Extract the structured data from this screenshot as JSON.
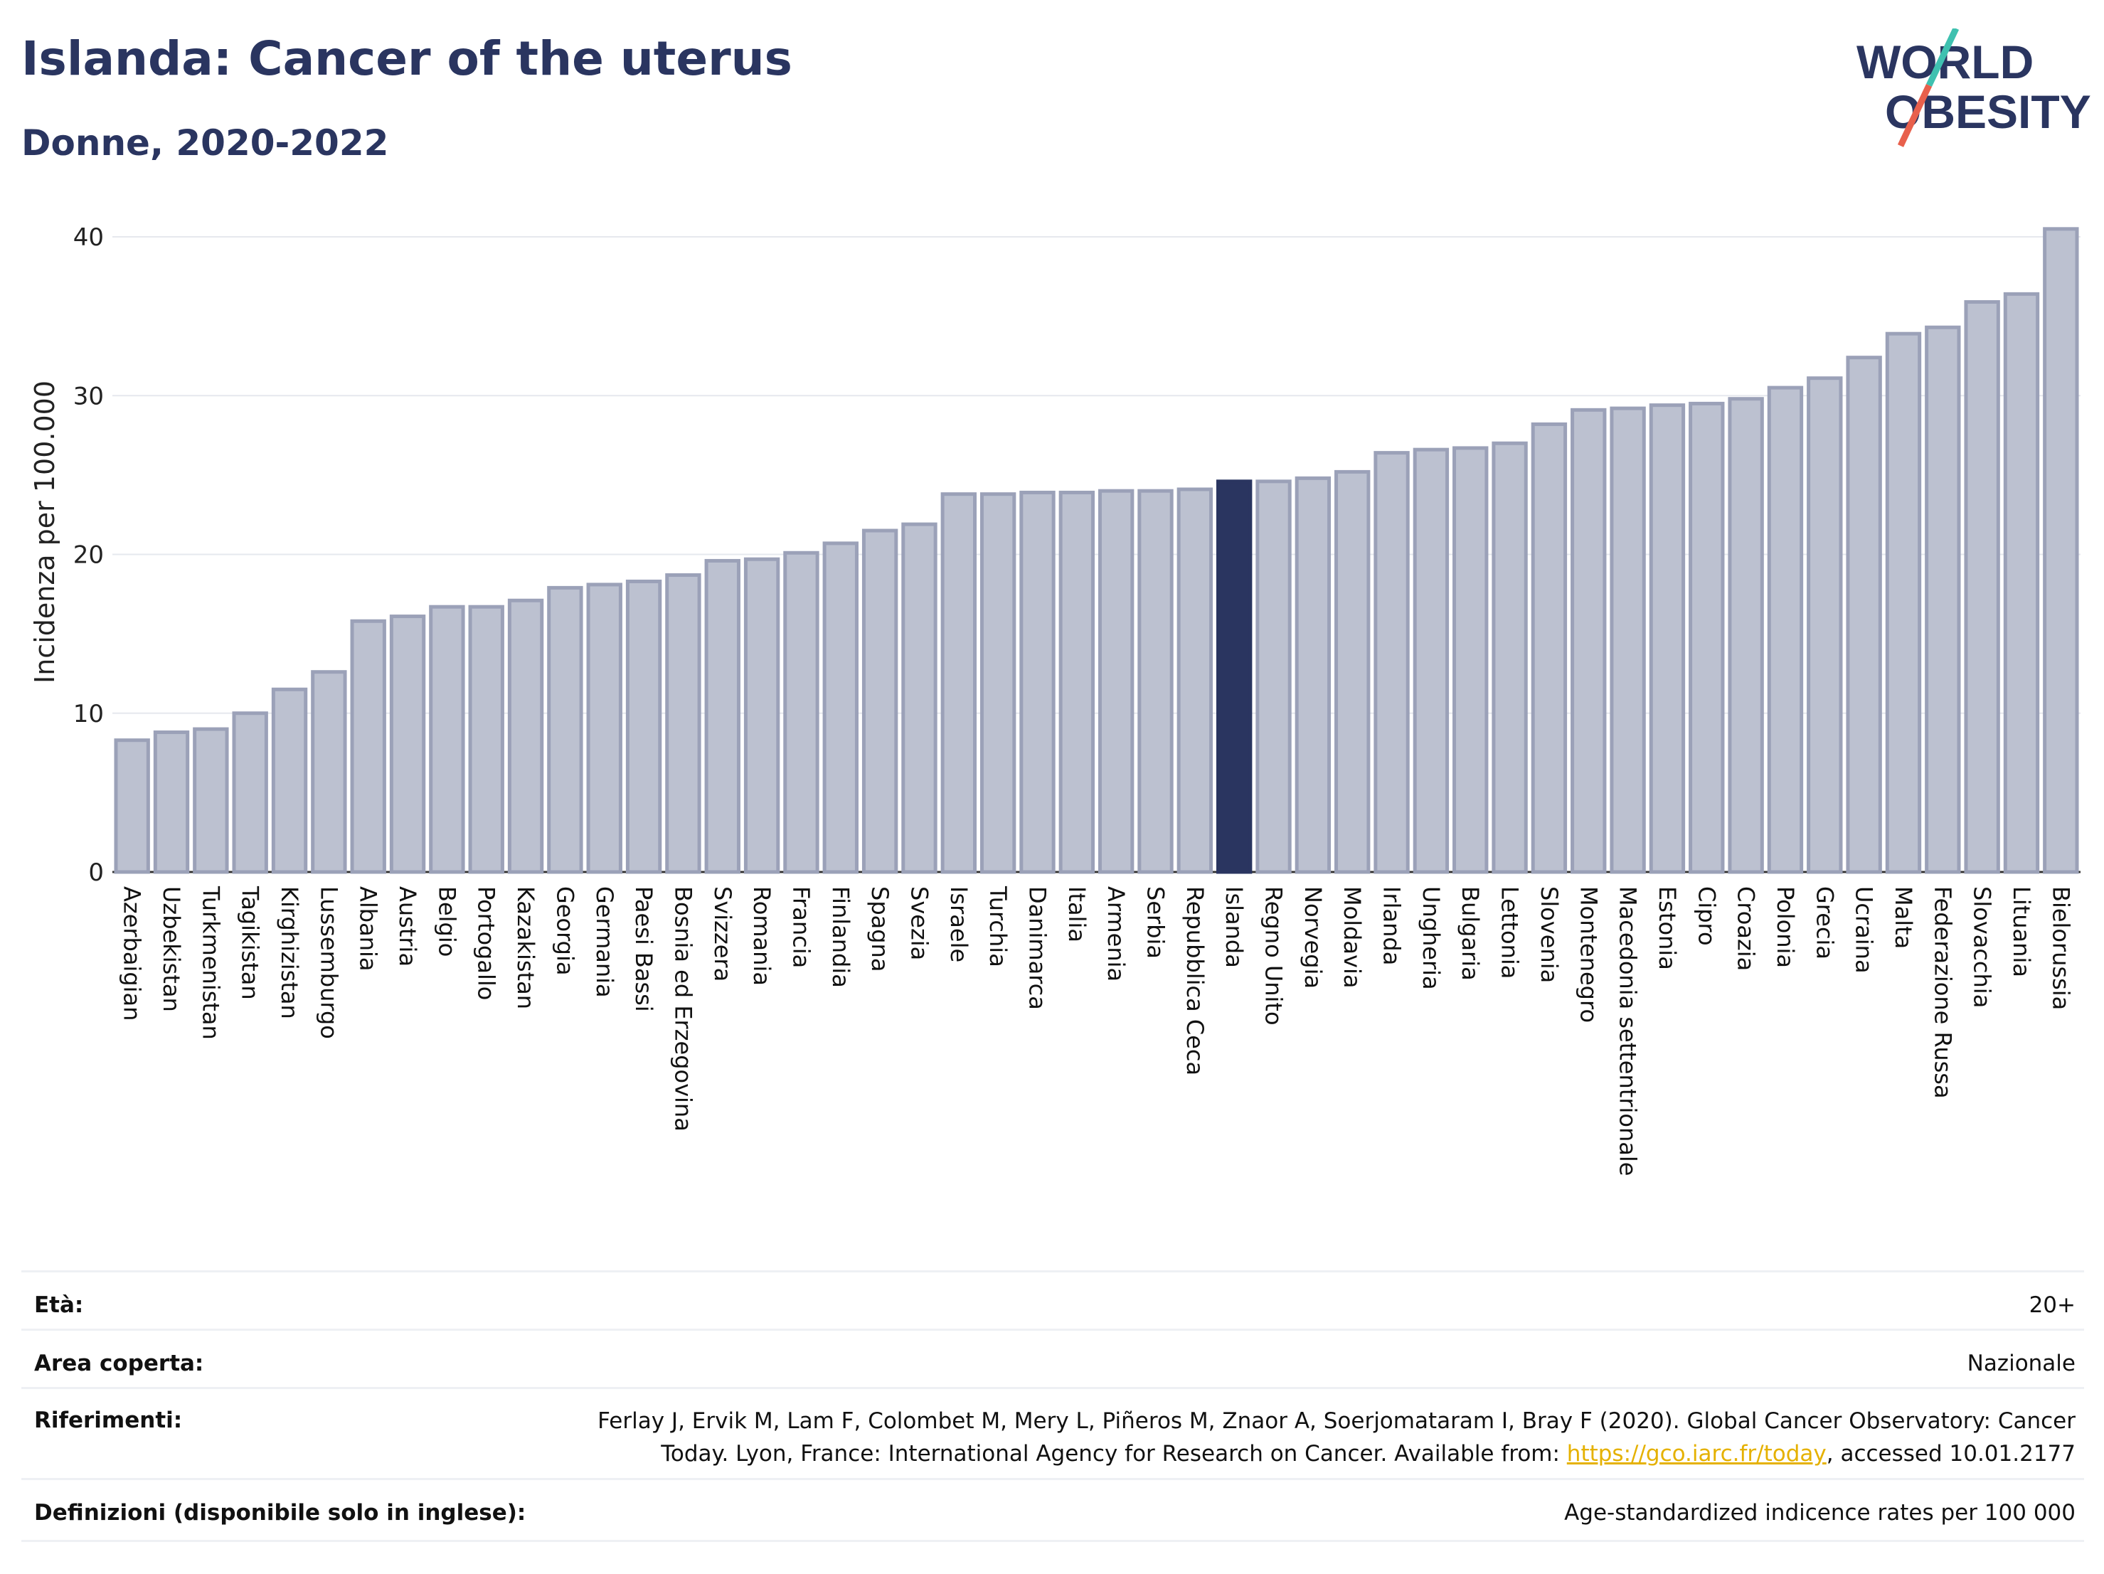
{
  "header": {
    "title": "Islanda: Cancer of the uterus",
    "subtitle": "Donne, 2020-2022"
  },
  "logo": {
    "line1": "WORLD",
    "line2": "OBESITY",
    "slash_colors": [
      "#3fc1b0",
      "#e8604c"
    ]
  },
  "chart_data": {
    "type": "bar",
    "ylabel": "Incidenza per 100.000",
    "ylim": [
      0,
      40
    ],
    "yticks": [
      0,
      10,
      20,
      30,
      40
    ],
    "grid": true,
    "highlight": "Islanda",
    "colors": {
      "bar": "#bcc1d0",
      "bar_edge": "#9ba1b8",
      "highlight": "#2a3560"
    },
    "categories": [
      "Azerbaigian",
      "Uzbekistan",
      "Turkmenistan",
      "Tagikistan",
      "Kirghizistan",
      "Lussemburgo",
      "Albania",
      "Austria",
      "Belgio",
      "Portogallo",
      "Kazakistan",
      "Georgia",
      "Germania",
      "Paesi Bassi",
      "Bosnia ed Erzegovina",
      "Svizzera",
      "Romania",
      "Francia",
      "Finlandia",
      "Spagna",
      "Svezia",
      "Israele",
      "Turchia",
      "Danimarca",
      "Italia",
      "Armenia",
      "Serbia",
      "Repubblica Ceca",
      "Islanda",
      "Regno Unito",
      "Norvegia",
      "Moldavia",
      "Irlanda",
      "Ungheria",
      "Bulgaria",
      "Lettonia",
      "Slovenia",
      "Montenegro",
      "Macedonia settentrionale",
      "Estonia",
      "Cipro",
      "Croazia",
      "Polonia",
      "Grecia",
      "Ucraina",
      "Malta",
      "Federazione Russa",
      "Slovacchia",
      "Lituania",
      "Bielorussia"
    ],
    "values": [
      8.3,
      8.8,
      9.0,
      10.0,
      11.5,
      12.6,
      15.8,
      16.1,
      16.7,
      16.7,
      17.1,
      17.9,
      18.1,
      18.3,
      18.7,
      19.6,
      19.7,
      20.1,
      20.7,
      21.5,
      21.9,
      23.8,
      23.8,
      23.9,
      23.9,
      24.0,
      24.0,
      24.1,
      24.6,
      24.6,
      24.8,
      25.2,
      26.4,
      26.6,
      26.7,
      27.0,
      28.2,
      29.1,
      29.2,
      29.4,
      29.5,
      29.8,
      30.5,
      31.1,
      32.4,
      33.9,
      34.3,
      35.9,
      36.4,
      40.5
    ]
  },
  "info": {
    "age_label": "Età:",
    "age_value": "20+",
    "area_label": "Area coperta:",
    "area_value": "Nazionale",
    "ref_label": "Riferimenti:",
    "ref_text1": "Ferlay J, Ervik M, Lam F, Colombet M, Mery L, Piñeros M, Znaor A, Soerjomataram I, Bray F (2020). Global Cancer Observatory: Cancer Today. Lyon, France: International Agency for Research on Cancer. Available from: ",
    "ref_link": "https://gco.iarc.fr/today",
    "ref_text2": ", accessed 10.01.2177",
    "def_label": "Definizioni (disponibile solo in inglese):",
    "def_value": "Age-standardized indicence rates per 100 000"
  }
}
